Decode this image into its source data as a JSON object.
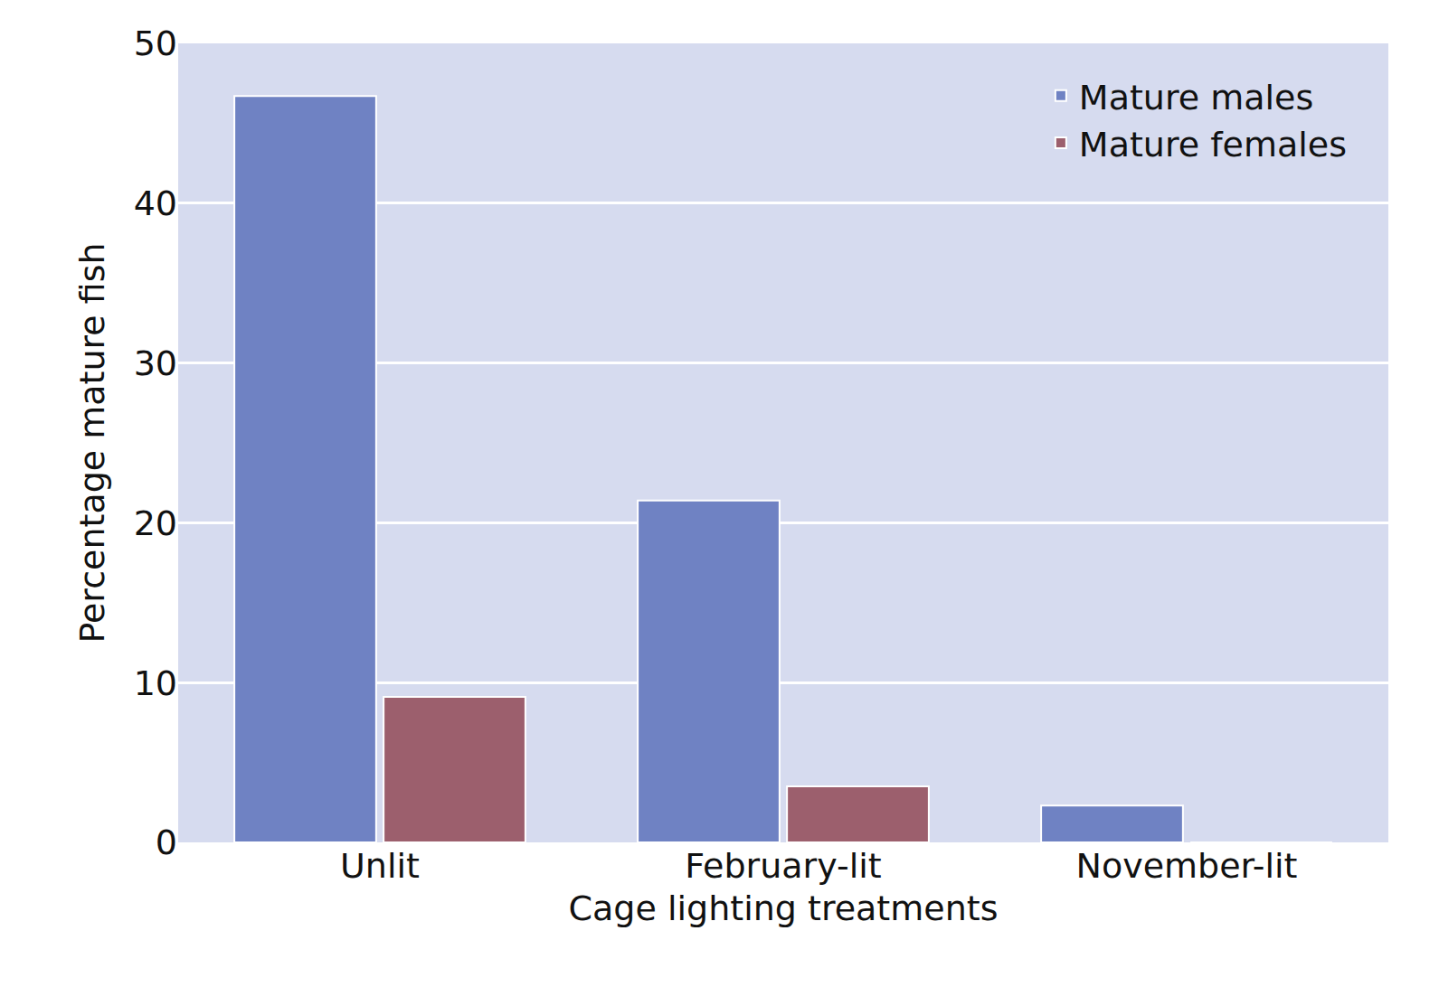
{
  "chart_data": {
    "type": "bar",
    "x_label": "Cage lighting treatments",
    "y_label": "Percentage mature fish",
    "categories": [
      "Unlit",
      "February-lit",
      "November-lit"
    ],
    "series": [
      {
        "name": "Mature males",
        "color": "#6f82c3",
        "values": [
          46.7,
          21.4,
          2.3
        ]
      },
      {
        "name": "Mature females",
        "color": "#9c5f6d",
        "values": [
          9.1,
          3.5,
          0
        ]
      }
    ],
    "ylim": [
      0,
      50
    ],
    "yticks": [
      0,
      10,
      20,
      30,
      40,
      50
    ],
    "grid": true,
    "legend": "top right"
  }
}
